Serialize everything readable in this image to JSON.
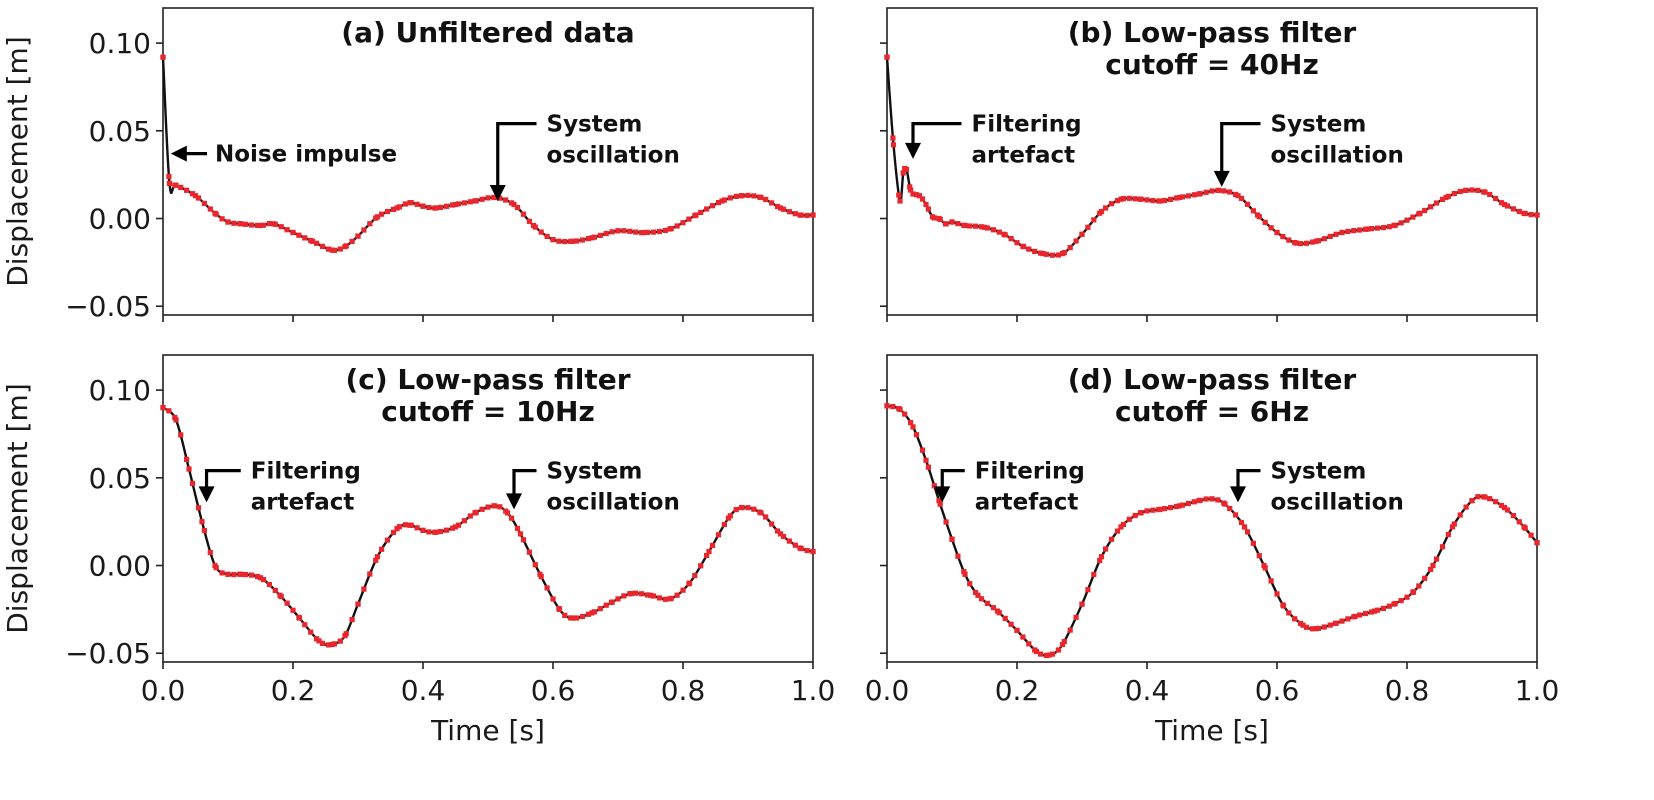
{
  "colors": {
    "line": "#111111",
    "markers": "#e8262d",
    "axes": "#222222"
  },
  "chart_data": [
    {
      "type": "line",
      "title": [
        "(a) Unfiltered data"
      ],
      "xlabel": "",
      "ylabel": "Displacement [m]",
      "xlim": [
        0.0,
        1.0
      ],
      "ylim": [
        -0.055,
        0.12
      ],
      "xticks": [
        0.0,
        0.2,
        0.4,
        0.6,
        0.8,
        1.0
      ],
      "xtick_labels": [
        "",
        "",
        "",
        "",
        "",
        ""
      ],
      "yticks": [
        0.1,
        0.05,
        0.0,
        -0.05
      ],
      "ytick_labels": [
        "0.10",
        "0.05",
        "0.00",
        "−0.05"
      ],
      "series": [
        {
          "x": [
            0.0,
            0.01,
            0.02,
            0.05,
            0.08,
            0.1,
            0.12,
            0.15,
            0.17,
            0.2,
            0.23,
            0.26,
            0.28,
            0.3,
            0.33,
            0.36,
            0.38,
            0.4,
            0.42,
            0.45,
            0.48,
            0.51,
            0.54,
            0.57,
            0.6,
            0.63,
            0.66,
            0.7,
            0.74,
            0.78,
            0.82,
            0.86,
            0.89,
            0.92,
            0.95,
            0.98,
            1.0
          ],
          "y": [
            0.092,
            0.02,
            0.019,
            0.013,
            0.003,
            -0.002,
            -0.003,
            -0.004,
            -0.003,
            -0.008,
            -0.013,
            -0.018,
            -0.016,
            -0.01,
            0.001,
            0.006,
            0.009,
            0.007,
            0.006,
            0.008,
            0.01,
            0.012,
            0.008,
            -0.004,
            -0.012,
            -0.013,
            -0.011,
            -0.007,
            -0.008,
            -0.006,
            0.002,
            0.01,
            0.013,
            0.012,
            0.006,
            0.002,
            0.002
          ]
        }
      ],
      "annotations": [
        {
          "lines": [
            "Noise impulse"
          ],
          "arrow_to": [
            0.012,
            0.037
          ],
          "text_at": [
            0.08,
            0.037
          ],
          "style": "horizontal"
        },
        {
          "lines": [
            "System",
            "oscillation"
          ],
          "arrow_to": [
            0.515,
            0.01
          ],
          "text_at": [
            0.59,
            0.037
          ],
          "style": "elbow"
        }
      ]
    },
    {
      "type": "line",
      "title": [
        "(b) Low-pass filter",
        "cutoff = 40Hz"
      ],
      "xlabel": "",
      "ylabel": "",
      "xlim": [
        0.0,
        1.0
      ],
      "ylim": [
        -0.055,
        0.12
      ],
      "xticks": [
        0.0,
        0.2,
        0.4,
        0.6,
        0.8,
        1.0
      ],
      "xtick_labels": [
        "",
        "",
        "",
        "",
        "",
        ""
      ],
      "yticks": [
        0.1,
        0.05,
        0.0,
        -0.05
      ],
      "ytick_labels": [
        "",
        "",
        "",
        ""
      ],
      "series": [
        {
          "x": [
            0.0,
            0.01,
            0.02,
            0.025,
            0.03,
            0.035,
            0.04,
            0.05,
            0.06,
            0.07,
            0.08,
            0.09,
            0.1,
            0.12,
            0.15,
            0.18,
            0.21,
            0.24,
            0.27,
            0.3,
            0.33,
            0.36,
            0.39,
            0.42,
            0.45,
            0.48,
            0.51,
            0.54,
            0.57,
            0.6,
            0.63,
            0.66,
            0.7,
            0.74,
            0.78,
            0.82,
            0.86,
            0.89,
            0.92,
            0.95,
            0.98,
            1.0
          ],
          "y": [
            0.092,
            0.042,
            0.01,
            0.026,
            0.028,
            0.018,
            0.014,
            0.013,
            0.008,
            0.001,
            0.0,
            -0.003,
            -0.002,
            -0.004,
            -0.005,
            -0.009,
            -0.016,
            -0.02,
            -0.02,
            -0.009,
            0.004,
            0.011,
            0.011,
            0.01,
            0.012,
            0.014,
            0.016,
            0.013,
            0.002,
            -0.008,
            -0.014,
            -0.013,
            -0.008,
            -0.006,
            -0.004,
            0.003,
            0.012,
            0.016,
            0.015,
            0.008,
            0.003,
            0.002
          ]
        }
      ],
      "annotations": [
        {
          "lines": [
            "Filtering",
            "artefact"
          ],
          "arrow_to": [
            0.04,
            0.034
          ],
          "text_at": [
            0.13,
            0.037
          ],
          "style": "elbow"
        },
        {
          "lines": [
            "System",
            "oscillation"
          ],
          "arrow_to": [
            0.515,
            0.018
          ],
          "text_at": [
            0.59,
            0.037
          ],
          "style": "elbow"
        }
      ]
    },
    {
      "type": "line",
      "title": [
        "(c) Low-pass filter",
        "cutoff = 10Hz"
      ],
      "xlabel": "Time [s]",
      "ylabel": "Displacement [m]",
      "xlim": [
        0.0,
        1.0
      ],
      "ylim": [
        -0.055,
        0.12
      ],
      "xticks": [
        0.0,
        0.2,
        0.4,
        0.6,
        0.8,
        1.0
      ],
      "xtick_labels": [
        "0.0",
        "0.2",
        "0.4",
        "0.6",
        "0.8",
        "1.0"
      ],
      "yticks": [
        0.1,
        0.05,
        0.0,
        -0.05
      ],
      "ytick_labels": [
        "0.10",
        "0.05",
        "0.00",
        "−0.05"
      ],
      "series": [
        {
          "x": [
            0.0,
            0.02,
            0.04,
            0.06,
            0.08,
            0.1,
            0.12,
            0.15,
            0.18,
            0.21,
            0.24,
            0.26,
            0.28,
            0.3,
            0.33,
            0.36,
            0.38,
            0.4,
            0.42,
            0.45,
            0.48,
            0.51,
            0.53,
            0.55,
            0.58,
            0.61,
            0.63,
            0.66,
            0.69,
            0.72,
            0.75,
            0.78,
            0.81,
            0.84,
            0.87,
            0.89,
            0.92,
            0.95,
            0.98,
            1.0
          ],
          "y": [
            0.09,
            0.083,
            0.055,
            0.025,
            0.0,
            -0.005,
            -0.005,
            -0.007,
            -0.017,
            -0.03,
            -0.043,
            -0.045,
            -0.04,
            -0.022,
            0.005,
            0.021,
            0.023,
            0.02,
            0.019,
            0.022,
            0.03,
            0.034,
            0.03,
            0.018,
            -0.005,
            -0.025,
            -0.03,
            -0.027,
            -0.021,
            -0.016,
            -0.017,
            -0.019,
            -0.01,
            0.008,
            0.027,
            0.033,
            0.03,
            0.018,
            0.01,
            0.008
          ]
        }
      ],
      "annotations": [
        {
          "lines": [
            "Filtering",
            "artefact"
          ],
          "arrow_to": [
            0.067,
            0.036
          ],
          "text_at": [
            0.135,
            0.037
          ],
          "style": "elbow"
        },
        {
          "lines": [
            "System",
            "oscillation"
          ],
          "arrow_to": [
            0.54,
            0.032
          ],
          "text_at": [
            0.59,
            0.037
          ],
          "style": "elbow"
        }
      ]
    },
    {
      "type": "line",
      "title": [
        "(d) Low-pass filter",
        "cutoff = 6Hz"
      ],
      "xlabel": "Time [s]",
      "ylabel": "",
      "xlim": [
        0.0,
        1.0
      ],
      "ylim": [
        -0.055,
        0.12
      ],
      "xticks": [
        0.0,
        0.2,
        0.4,
        0.6,
        0.8,
        1.0
      ],
      "xtick_labels": [
        "0.0",
        "0.2",
        "0.4",
        "0.6",
        "0.8",
        "1.0"
      ],
      "yticks": [
        0.1,
        0.05,
        0.0,
        -0.05
      ],
      "ytick_labels": [
        "",
        "",
        "",
        ""
      ],
      "series": [
        {
          "x": [
            0.0,
            0.02,
            0.04,
            0.06,
            0.08,
            0.1,
            0.12,
            0.14,
            0.17,
            0.2,
            0.23,
            0.25,
            0.27,
            0.3,
            0.33,
            0.36,
            0.39,
            0.42,
            0.45,
            0.48,
            0.5,
            0.52,
            0.55,
            0.58,
            0.61,
            0.64,
            0.66,
            0.69,
            0.72,
            0.75,
            0.78,
            0.81,
            0.84,
            0.87,
            0.9,
            0.92,
            0.95,
            0.98,
            1.0
          ],
          "y": [
            0.091,
            0.089,
            0.079,
            0.06,
            0.037,
            0.015,
            -0.005,
            -0.017,
            -0.026,
            -0.037,
            -0.049,
            -0.051,
            -0.045,
            -0.022,
            0.005,
            0.022,
            0.03,
            0.032,
            0.034,
            0.037,
            0.038,
            0.035,
            0.022,
            0.0,
            -0.023,
            -0.034,
            -0.036,
            -0.033,
            -0.029,
            -0.026,
            -0.022,
            -0.015,
            0.0,
            0.022,
            0.037,
            0.039,
            0.033,
            0.022,
            0.013
          ]
        }
      ],
      "annotations": [
        {
          "lines": [
            "Filtering",
            "artefact"
          ],
          "arrow_to": [
            0.085,
            0.036
          ],
          "text_at": [
            0.135,
            0.037
          ],
          "style": "elbow"
        },
        {
          "lines": [
            "System",
            "oscillation"
          ],
          "arrow_to": [
            0.54,
            0.036
          ],
          "text_at": [
            0.59,
            0.037
          ],
          "style": "elbow"
        }
      ]
    }
  ]
}
